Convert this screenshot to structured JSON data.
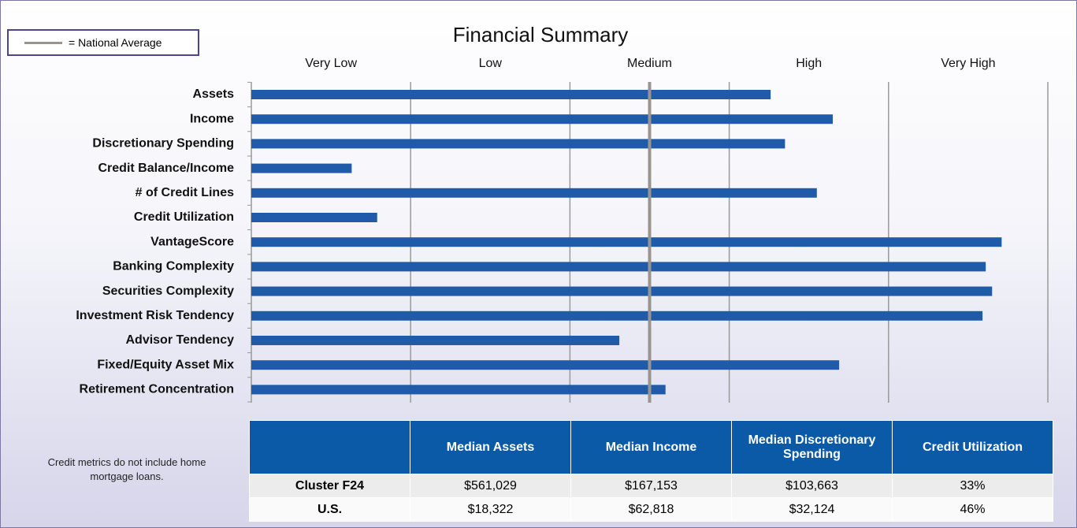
{
  "chart_data": {
    "type": "hbar",
    "title": "Financial Summary",
    "legend_label": "= National Average",
    "bands": [
      "Very Low",
      "Low",
      "Medium",
      "High",
      "Very High"
    ],
    "categories": [
      "Assets",
      "Income",
      "Discretionary Spending",
      "Credit Balance/Income",
      "# of Credit Lines",
      "Credit Utilization",
      "VantageScore",
      "Banking Complexity",
      "Securities Complexity",
      "Investment Risk Tendency",
      "Advisor Tendency",
      "Fixed/Equity Asset Mix",
      "Retirement Concentration"
    ],
    "values": [
      3.26,
      3.65,
      3.35,
      0.63,
      3.55,
      0.79,
      4.71,
      4.61,
      4.65,
      4.59,
      2.31,
      3.69,
      2.6
    ],
    "color": "#1f5ba8",
    "national_average": 2.5,
    "national_average_color": "#9a948f",
    "xlim": [
      0,
      5
    ],
    "xticks": [
      0,
      1,
      2,
      3,
      4,
      5
    ],
    "grid": true
  },
  "note": "Credit metrics do not include home mortgage loans.",
  "table": {
    "header": [
      "Median Assets",
      "Median Income",
      "Median Discretionary Spending",
      "Credit Utilization"
    ],
    "rows": [
      [
        "Cluster F24",
        "$561,029",
        "$167,153",
        "$103,663",
        "33%"
      ],
      [
        "U.S.",
        "$18,322",
        "$62,818",
        "$32,124",
        "46%"
      ]
    ]
  }
}
